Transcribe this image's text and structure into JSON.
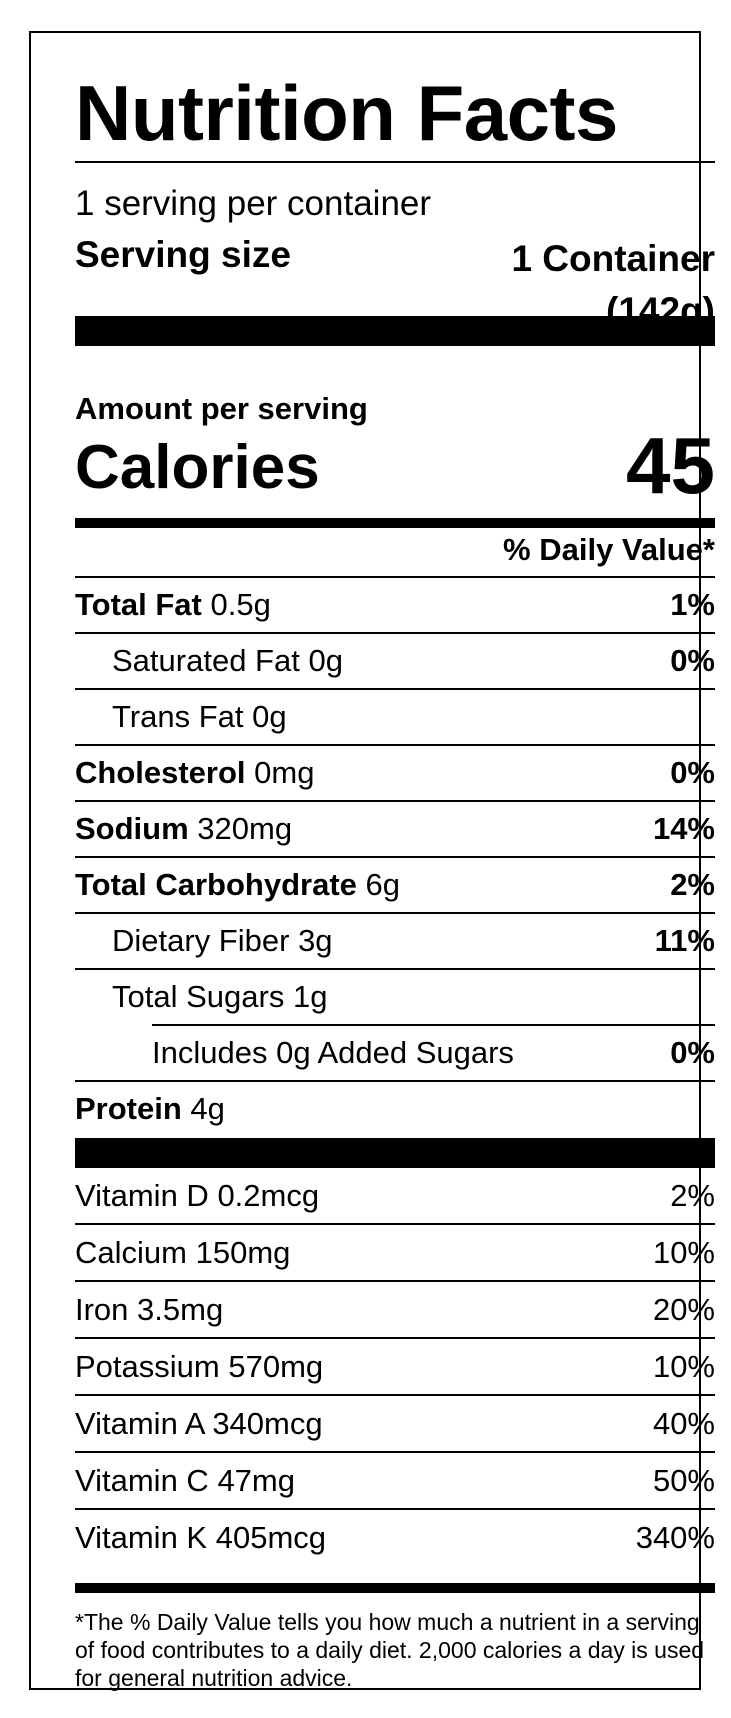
{
  "label": {
    "title": "Nutrition Facts",
    "servings_per_container": "1 serving per container",
    "serving_size_label": "Serving size",
    "serving_size_value_line1": "1 Container",
    "serving_size_value_line2": "(142g)",
    "amount_per_serving": "Amount per serving",
    "calories_label": "Calories",
    "calories_value": "45",
    "daily_value_header": "% Daily Value*"
  },
  "nutrients": [
    {
      "name": "Total Fat",
      "amount": "0.5g",
      "dv": "1%"
    },
    {
      "name": "Saturated Fat",
      "amount": "0g",
      "dv": "0%"
    },
    {
      "name": "Trans Fat",
      "amount": "0g",
      "dv": ""
    },
    {
      "name": "Cholesterol",
      "amount": "0mg",
      "dv": "0%"
    },
    {
      "name": "Sodium",
      "amount": "320mg",
      "dv": "14%"
    },
    {
      "name": "Total Carbohydrate",
      "amount": "6g",
      "dv": "2%"
    },
    {
      "name": "Dietary Fiber",
      "amount": "3g",
      "dv": "11%"
    },
    {
      "name": "Total Sugars",
      "amount": "1g",
      "dv": ""
    },
    {
      "name": "Includes 0g Added Sugars",
      "amount": "",
      "dv": "0%"
    },
    {
      "name": "Protein",
      "amount": "4g",
      "dv": ""
    }
  ],
  "vitamins": [
    {
      "name": "Vitamin D",
      "amount": "0.2mcg",
      "dv": "2%"
    },
    {
      "name": "Calcium",
      "amount": "150mg",
      "dv": "10%"
    },
    {
      "name": "Iron",
      "amount": "3.5mg",
      "dv": "20%"
    },
    {
      "name": "Potassium",
      "amount": "570mg",
      "dv": "10%"
    },
    {
      "name": "Vitamin A",
      "amount": "340mcg",
      "dv": "40%"
    },
    {
      "name": "Vitamin C",
      "amount": "47mg",
      "dv": "50%"
    },
    {
      "name": "Vitamin K",
      "amount": "405mcg",
      "dv": "340%"
    }
  ],
  "footnote": "*The % Daily Value tells you how much a nutrient in a serving of food contributes to a daily diet. 2,000 calories a day is used for general nutrition advice."
}
